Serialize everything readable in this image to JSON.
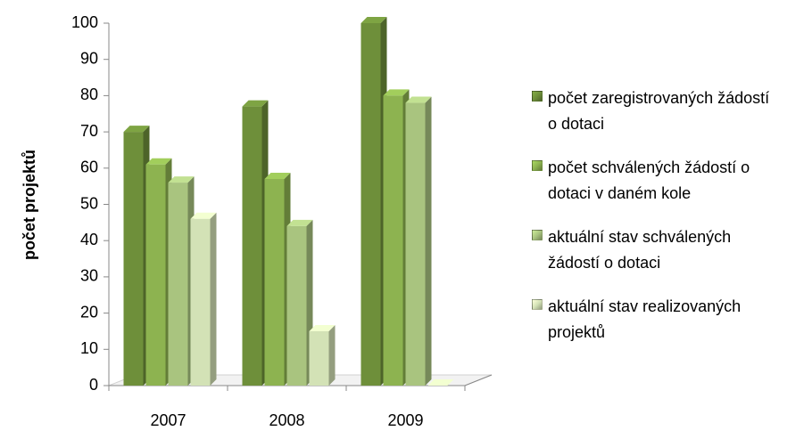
{
  "chart_data": {
    "type": "bar3d",
    "y_axis_label": "počet projektů",
    "categories": [
      "2007",
      "2008",
      "2009"
    ],
    "series": [
      {
        "name": "počet zaregistrovaných žádostí o dotaci",
        "color": "#6e8f3a",
        "values": [
          70,
          77,
          100
        ]
      },
      {
        "name": "počet schválených žádostí o dotaci v daném kole",
        "color": "#8db350",
        "values": [
          61,
          57,
          80
        ]
      },
      {
        "name": "aktuální stav schválených žádostí o dotaci",
        "color": "#a9c47f",
        "values": [
          56,
          44,
          78
        ]
      },
      {
        "name": "aktuální stav realizovaných projektů",
        "color": "#d3e2b6",
        "values": [
          46,
          15,
          0
        ]
      }
    ],
    "ylim": [
      0,
      100
    ],
    "yticks": [
      0,
      10,
      20,
      30,
      40,
      50,
      60,
      70,
      80,
      90,
      100
    ],
    "legend": "right"
  }
}
